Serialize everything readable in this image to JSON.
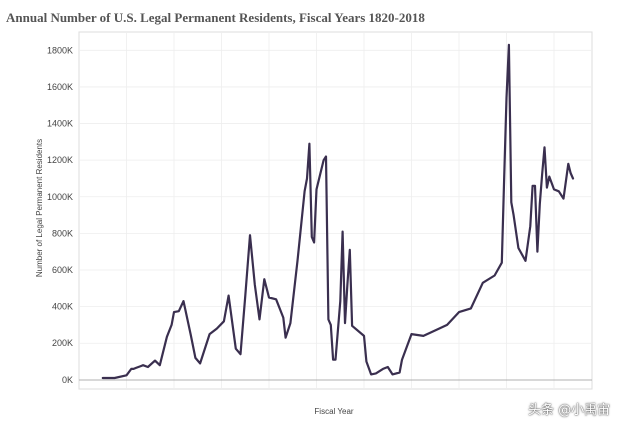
{
  "chart_data": {
    "type": "line",
    "title": "Annual Number of U.S. Legal Permanent Residents, Fiscal Years 1820-2018",
    "xlabel": "Fiscal Year",
    "ylabel": "Number of Legal Permanent Residents",
    "xlim": [
      1810,
      2026
    ],
    "ylim": [
      -50000,
      1900000
    ],
    "y_ticks": [
      0,
      200000,
      400000,
      600000,
      800000,
      1000000,
      1200000,
      1400000,
      1600000,
      1800000
    ],
    "y_tick_labels": [
      "0K",
      "200K",
      "400K",
      "600K",
      "800K",
      "1000K",
      "1200K",
      "1400K",
      "1600K",
      "1800K"
    ],
    "x_gridlines": [
      1830,
      1850,
      1870,
      1890,
      1910,
      1930,
      1950,
      1970,
      1990,
      2010
    ],
    "grid": true,
    "line_color": "#3a2f4f",
    "series": [
      {
        "name": "Legal Permanent Residents",
        "x": [
          1820,
          1825,
          1830,
          1832,
          1833,
          1834,
          1836,
          1837,
          1839,
          1842,
          1844,
          1847,
          1849,
          1850,
          1852,
          1854,
          1857,
          1859,
          1861,
          1865,
          1868,
          1871,
          1873,
          1876,
          1878,
          1880,
          1882,
          1884,
          1886,
          1888,
          1890,
          1893,
          1896,
          1897,
          1899,
          1902,
          1905,
          1906,
          1907,
          1908,
          1909,
          1910,
          1913,
          1914,
          1915,
          1916,
          1917,
          1918,
          1920,
          1921,
          1922,
          1923,
          1924,
          1925,
          1930,
          1931,
          1933,
          1935,
          1938,
          1940,
          1942,
          1945,
          1946,
          1950,
          1955,
          1960,
          1965,
          1970,
          1975,
          1980,
          1985,
          1988,
          1989,
          1990,
          1991,
          1992,
          1993,
          1995,
          1998,
          2000,
          2001,
          2002,
          2003,
          2004,
          2005,
          2006,
          2007,
          2008,
          2010,
          2012,
          2014,
          2016,
          2017,
          2018
        ],
        "y": [
          10000,
          10000,
          25000,
          60000,
          60000,
          65000,
          75000,
          80000,
          70000,
          105000,
          80000,
          235000,
          300000,
          370000,
          375000,
          430000,
          250000,
          120000,
          90000,
          250000,
          280000,
          320000,
          460000,
          170000,
          140000,
          460000,
          790000,
          520000,
          330000,
          550000,
          450000,
          440000,
          340000,
          230000,
          310000,
          650000,
          1030000,
          1100000,
          1290000,
          780000,
          750000,
          1040000,
          1200000,
          1220000,
          330000,
          300000,
          110000,
          110000,
          430000,
          810000,
          310000,
          520000,
          710000,
          295000,
          240000,
          100000,
          30000,
          35000,
          60000,
          70000,
          30000,
          40000,
          110000,
          250000,
          240000,
          270000,
          300000,
          370000,
          390000,
          530000,
          570000,
          640000,
          1090000,
          1540000,
          1830000,
          970000,
          900000,
          720000,
          650000,
          840000,
          1060000,
          1060000,
          700000,
          960000,
          1120000,
          1270000,
          1050000,
          1110000,
          1040000,
          1030000,
          990000,
          1180000,
          1130000,
          1100000
        ]
      }
    ]
  },
  "watermark": {
    "text": "头条 @小禹宙"
  }
}
